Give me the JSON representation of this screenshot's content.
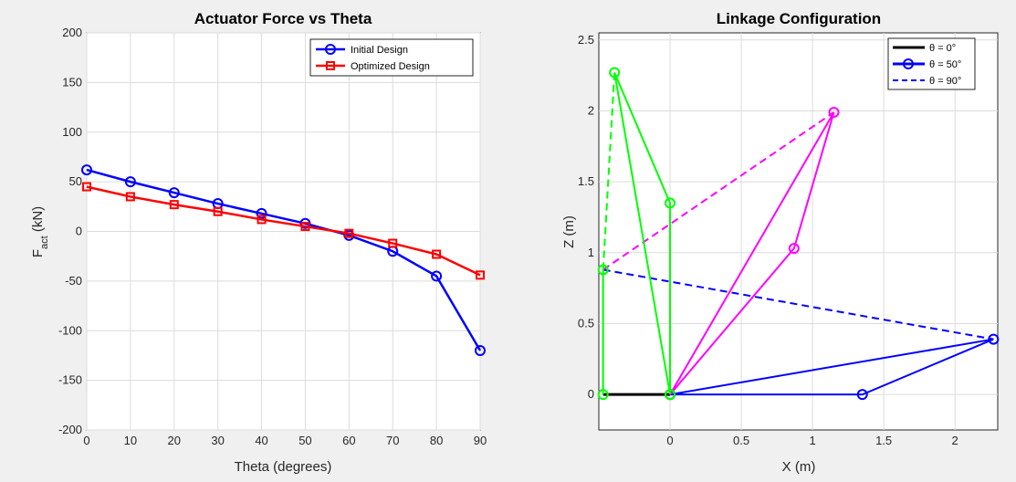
{
  "chart_data": [
    {
      "type": "line",
      "title": "Actuator Force vs Theta",
      "xlabel": "Theta (degrees)",
      "ylabel_main": "F",
      "ylabel_sub": "act",
      "ylabel_unit": " (kN)",
      "xlim": [
        0,
        90
      ],
      "ylim": [
        -200,
        200
      ],
      "xticks": [
        0,
        10,
        20,
        30,
        40,
        50,
        60,
        70,
        80,
        90
      ],
      "yticks": [
        -200,
        -150,
        -100,
        -50,
        0,
        50,
        100,
        150,
        200
      ],
      "grid": true,
      "legend_location": "top-right",
      "x": [
        0,
        10,
        20,
        30,
        40,
        50,
        60,
        70,
        80,
        90
      ],
      "series": [
        {
          "name": "Initial Design",
          "color": "#0000ff",
          "marker": "circle",
          "values": [
            62,
            50,
            39,
            28,
            18,
            8,
            -4,
            -20,
            -45,
            -120
          ]
        },
        {
          "name": "Optimized Design",
          "color": "#ff0000",
          "marker": "square",
          "values": [
            45,
            35,
            27,
            20,
            12,
            5,
            -2,
            -12,
            -23,
            -44
          ]
        }
      ]
    },
    {
      "type": "line",
      "title": "Linkage Configuration",
      "xlabel": "X (m)",
      "ylabel": "Z (m)",
      "xlim": [
        -0.5,
        2.3
      ],
      "ylim": [
        -0.25,
        2.55
      ],
      "xticks": [
        0,
        0.5,
        1,
        1.5,
        2
      ],
      "yticks": [
        0,
        0.5,
        1,
        1.5,
        2,
        2.5
      ],
      "grid": true,
      "legend_location": "top-right",
      "legend": [
        {
          "label": "θ = 0°",
          "color": "#000000",
          "style": "solid",
          "marker": "none"
        },
        {
          "label": "θ = 50°",
          "color": "#0000ff",
          "style": "solid",
          "marker": "circle"
        },
        {
          "label": "θ = 90°",
          "color": "#0000ff",
          "style": "dashed",
          "marker": "none"
        }
      ],
      "series": [
        {
          "color": "#000000",
          "style": "solid",
          "width": 3,
          "marker": "none",
          "points": [
            [
              -0.47,
              0
            ],
            [
              0,
              0
            ]
          ]
        },
        {
          "color": "#0000ff",
          "style": "solid",
          "width": 2,
          "marker": "circle",
          "points": [
            [
              0,
              0
            ],
            [
              2.27,
              0.39
            ],
            [
              1.35,
              0
            ],
            [
              0,
              0
            ]
          ]
        },
        {
          "color": "#0000ff",
          "style": "dashed",
          "width": 2,
          "marker": "none",
          "points": [
            [
              -0.47,
              0.88
            ],
            [
              2.27,
              0.39
            ]
          ]
        },
        {
          "color": "#ff00ff",
          "style": "solid",
          "width": 2,
          "marker": "circle",
          "points": [
            [
              0,
              0
            ],
            [
              1.15,
              1.99
            ],
            [
              0.87,
              1.03
            ],
            [
              0,
              0
            ]
          ]
        },
        {
          "color": "#ff00ff",
          "style": "dashed",
          "width": 2,
          "marker": "none",
          "points": [
            [
              -0.47,
              0.88
            ],
            [
              1.15,
              1.99
            ]
          ]
        },
        {
          "color": "#00ff00",
          "style": "solid",
          "width": 2,
          "marker": "circle",
          "points": [
            [
              -0.47,
              0
            ],
            [
              -0.47,
              0.88
            ]
          ]
        },
        {
          "color": "#00ff00",
          "style": "solid",
          "width": 2,
          "marker": "circle",
          "points": [
            [
              0,
              0
            ],
            [
              -0.39,
              2.27
            ],
            [
              0,
              1.35
            ],
            [
              0,
              0
            ]
          ]
        },
        {
          "color": "#00ff00",
          "style": "dashed",
          "width": 2,
          "marker": "none",
          "points": [
            [
              -0.47,
              0.88
            ],
            [
              -0.39,
              2.27
            ]
          ]
        }
      ]
    }
  ]
}
